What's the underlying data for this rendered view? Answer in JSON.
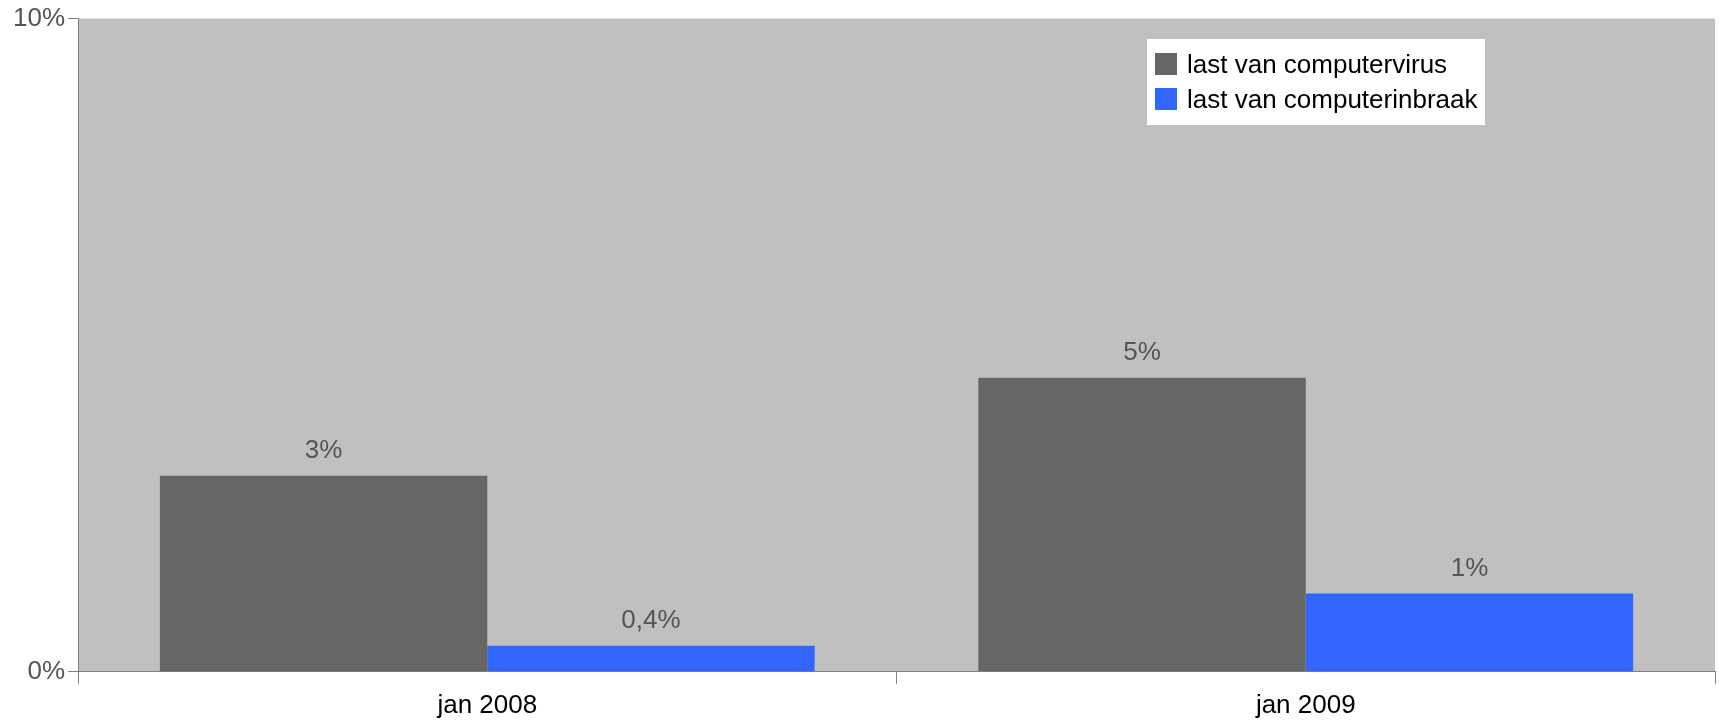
{
  "chart_data": {
    "type": "bar",
    "categories": [
      "jan 2008",
      "jan 2009"
    ],
    "series": [
      {
        "name": "last van computervirus",
        "color": "#666666",
        "values": [
          3,
          4.5
        ],
        "value_labels": [
          "3%",
          "5%"
        ]
      },
      {
        "name": "last van computerinbraak",
        "color": "#3366ff",
        "values": [
          0.4,
          1.2
        ],
        "value_labels": [
          "0,4%",
          "1%"
        ]
      }
    ],
    "ylim": [
      0,
      10
    ],
    "yticks": [
      {
        "value": 0,
        "label": "0%"
      },
      {
        "value": 10,
        "label": "10%"
      }
    ],
    "legend": "top right",
    "grid": false
  }
}
